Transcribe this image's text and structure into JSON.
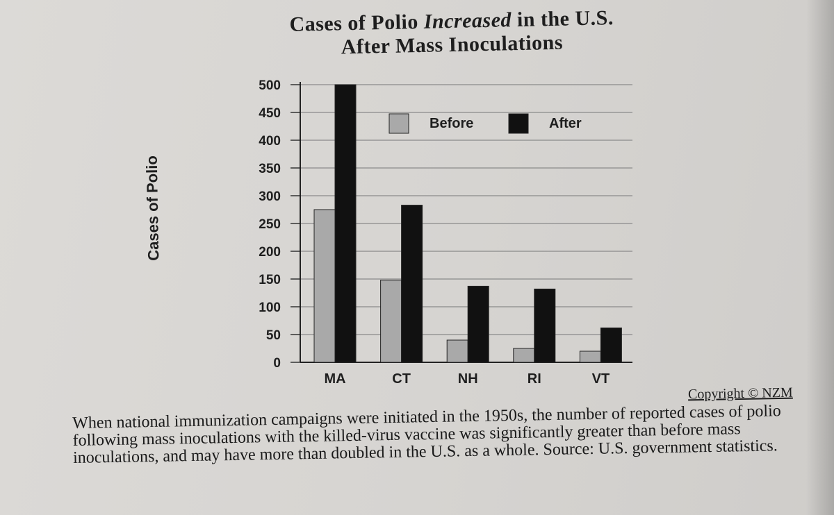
{
  "chart_data": {
    "type": "bar",
    "title_line1_pre": "Cases of Polio ",
    "title_line1_em": "Increased",
    "title_line1_post": " in the U.S.",
    "title_line2": "After Mass Inoculations",
    "ylabel": "Cases of Polio",
    "xlabel": "",
    "ylim": [
      0,
      500
    ],
    "yticks": [
      0,
      50,
      100,
      150,
      200,
      250,
      300,
      350,
      400,
      450,
      500
    ],
    "categories": [
      "MA",
      "CT",
      "NH",
      "RI",
      "VT"
    ],
    "series": [
      {
        "name": "Before",
        "values": [
          275,
          148,
          40,
          25,
          20
        ]
      },
      {
        "name": "After",
        "values": [
          500,
          283,
          137,
          132,
          62
        ]
      }
    ],
    "legend": "top-right",
    "grid": true
  },
  "colors": {
    "before": "#a9a9a9",
    "after": "#111111",
    "ink": "#1e1e1e"
  },
  "copyright": "Copyright © NZM",
  "caption": "When national immunization campaigns were initiated in the 1950s, the number of reported cases of polio following mass inoculations with the killed-virus vaccine was significantly greater than before mass inoculations, and may have more than doubled in the U.S. as a whole. Source: U.S. government statistics."
}
